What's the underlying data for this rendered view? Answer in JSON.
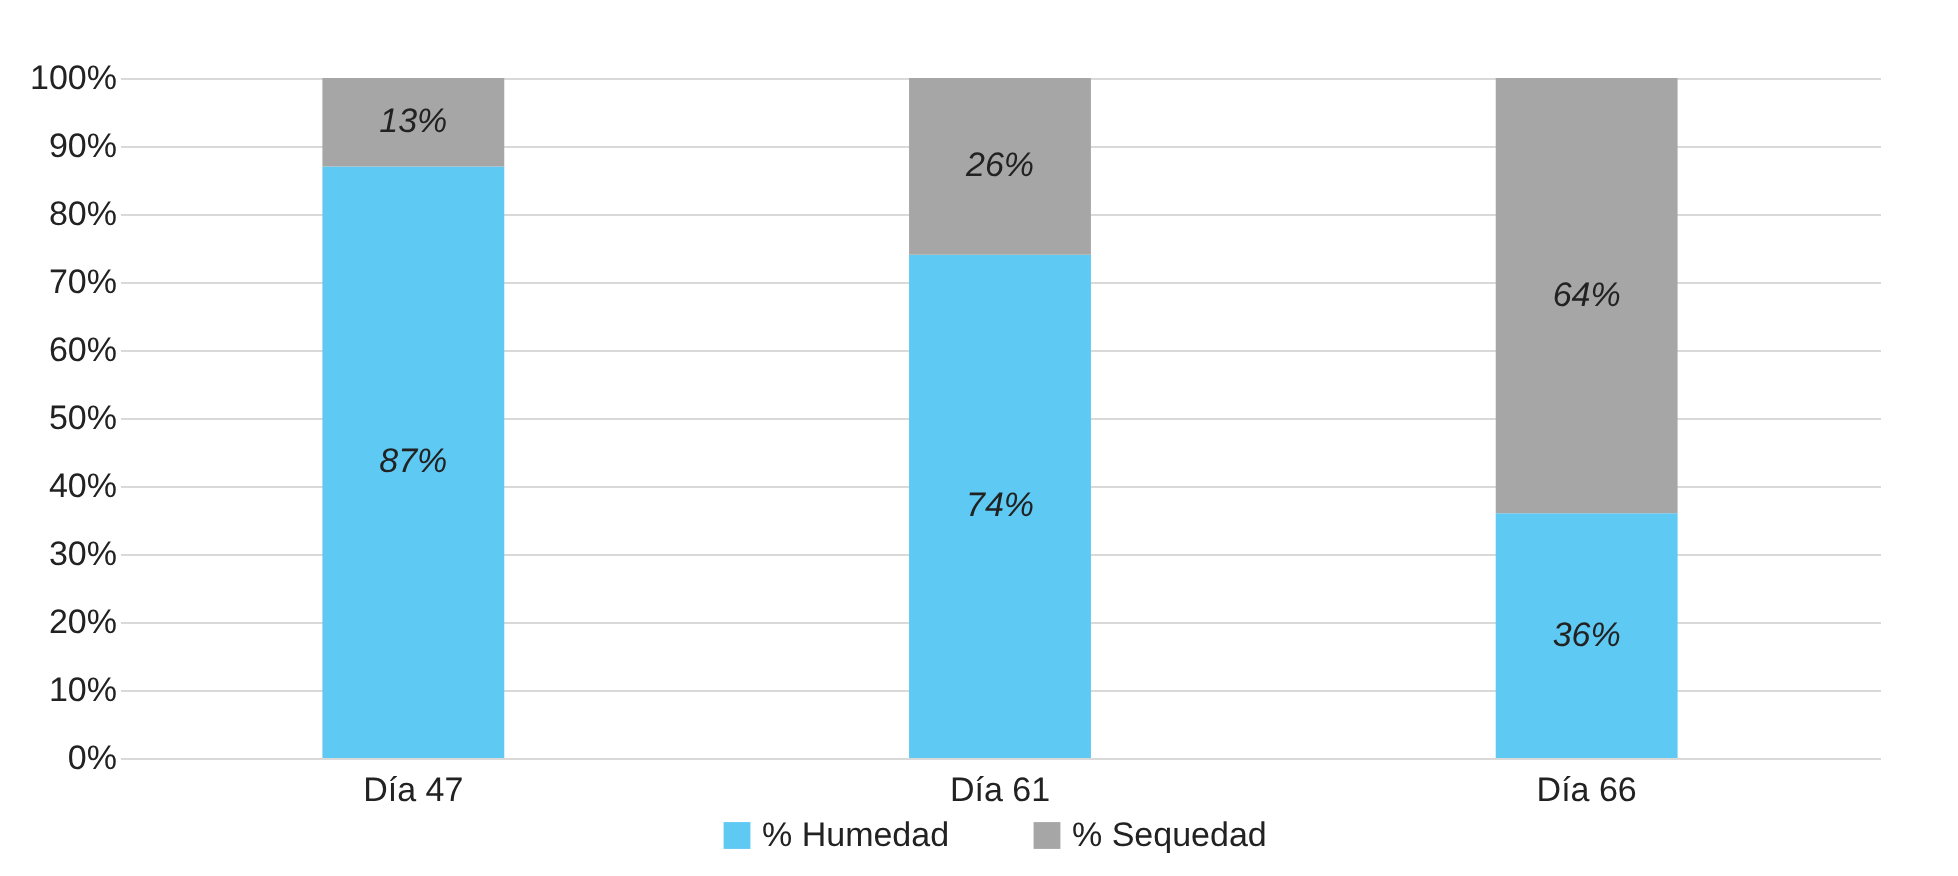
{
  "chart_data": {
    "type": "bar",
    "stacked": true,
    "categories": [
      "Día 47",
      "Día 61",
      "Día 66"
    ],
    "series": [
      {
        "name": "% Humedad",
        "color": "#5ec9f2",
        "values": [
          87,
          74,
          36
        ],
        "value_labels": [
          "87%",
          "74%",
          "36%"
        ]
      },
      {
        "name": "% Sequedad",
        "color": "#a6a6a6",
        "values": [
          13,
          26,
          64
        ],
        "value_labels": [
          "13%",
          "26%",
          "64%"
        ]
      }
    ],
    "ylim": [
      0,
      100
    ],
    "yticks": [
      {
        "value": 0,
        "label": "0%"
      },
      {
        "value": 10,
        "label": "10%"
      },
      {
        "value": 20,
        "label": "20%"
      },
      {
        "value": 30,
        "label": "30%"
      },
      {
        "value": 40,
        "label": "40%"
      },
      {
        "value": 50,
        "label": "50%"
      },
      {
        "value": 60,
        "label": "60%"
      },
      {
        "value": 70,
        "label": "70%"
      },
      {
        "value": 80,
        "label": "80%"
      },
      {
        "value": 90,
        "label": "90%"
      },
      {
        "value": 100,
        "label": "100%"
      }
    ],
    "grid": "y",
    "legend": "bottom"
  }
}
